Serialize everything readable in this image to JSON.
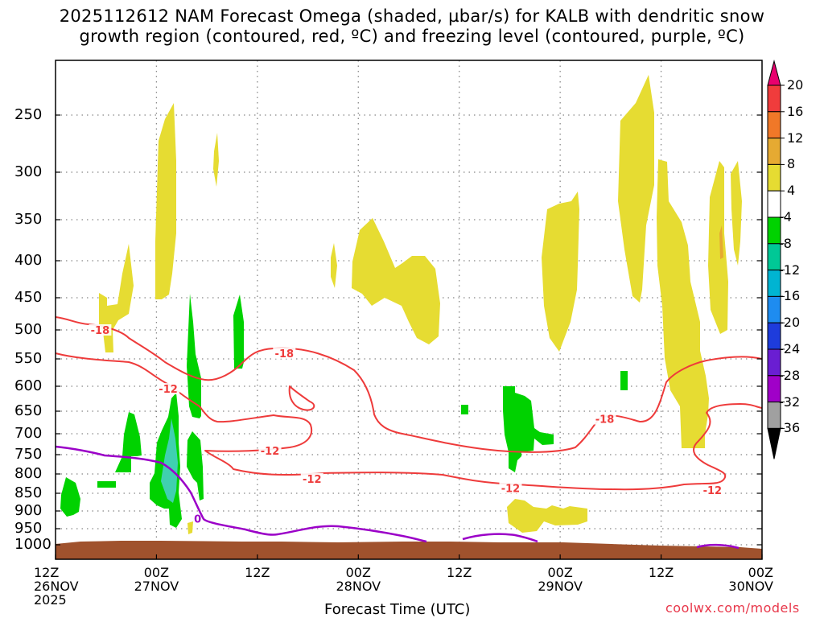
{
  "title": {
    "line1": "2025112612 NAM Forecast Omega (shaded, µbar/s) for KALB with dendritic snow",
    "line2": "growth region (contoured, red, ºC) and freezing level (contoured, purple, ºC)"
  },
  "credit": "coolwx.com/models",
  "chart_data": {
    "type": "heatmap",
    "xlabel": "Forecast Time (UTC)",
    "x_ticks": [
      {
        "label": "12Z\n26NOV\n2025"
      },
      {
        "label": "00Z\n27NOV"
      },
      {
        "label": "12Z"
      },
      {
        "label": "00Z\n28NOV"
      },
      {
        "label": "12Z"
      },
      {
        "label": "00Z\n29NOV"
      },
      {
        "label": "12Z"
      },
      {
        "label": "00Z\n30NOV"
      }
    ],
    "y_ticks": [
      "250",
      "300",
      "350",
      "400",
      "450",
      "500",
      "550",
      "600",
      "650",
      "700",
      "750",
      "800",
      "850",
      "900",
      "950",
      "1000"
    ],
    "y_levels_hpa": [
      250,
      300,
      350,
      400,
      450,
      500,
      550,
      600,
      650,
      700,
      750,
      800,
      850,
      900,
      950,
      1000
    ],
    "x_range_hours": [
      0,
      84
    ],
    "colorbar": {
      "labels": [
        "20",
        "16",
        "12",
        "8",
        "4",
        "-4",
        "-8",
        "-12",
        "-16",
        "-20",
        "-24",
        "-28",
        "-32",
        "-36"
      ],
      "colors": [
        "#e8006e",
        "#f03c3c",
        "#f07828",
        "#e6aa32",
        "#e6dc32",
        "#ffffff",
        "#00d200",
        "#00c896",
        "#00b4d2",
        "#1e8cf0",
        "#1e3cdc",
        "#6a1ed2",
        "#a000c8",
        "#a0a0a0",
        "#000000"
      ]
    },
    "colors": {
      "dgz_contour": "#ee3b3b",
      "freezing_contour": "#9b00c8",
      "terrain": "#a0522d",
      "positive_omega": "#e6dc32",
      "negative_omega": "#00d200",
      "strong_negative": "#40d0b0"
    },
    "contour_labels": [
      {
        "text": "-18",
        "hour": 5.3,
        "hpa": 500
      },
      {
        "text": "-18",
        "hour": 27.2,
        "hpa": 540
      },
      {
        "text": "-12",
        "hour": 13.4,
        "hpa": 605
      },
      {
        "text": "-12",
        "hour": 25.5,
        "hpa": 740
      },
      {
        "text": "-12",
        "hour": 30.5,
        "hpa": 812
      },
      {
        "text": "-12",
        "hour": 54.1,
        "hpa": 836
      },
      {
        "text": "-18",
        "hour": 65.3,
        "hpa": 667
      },
      {
        "text": "-12",
        "hour": 78.1,
        "hpa": 842
      },
      {
        "text": "0",
        "hour": 16.9,
        "hpa": 922
      }
    ]
  }
}
